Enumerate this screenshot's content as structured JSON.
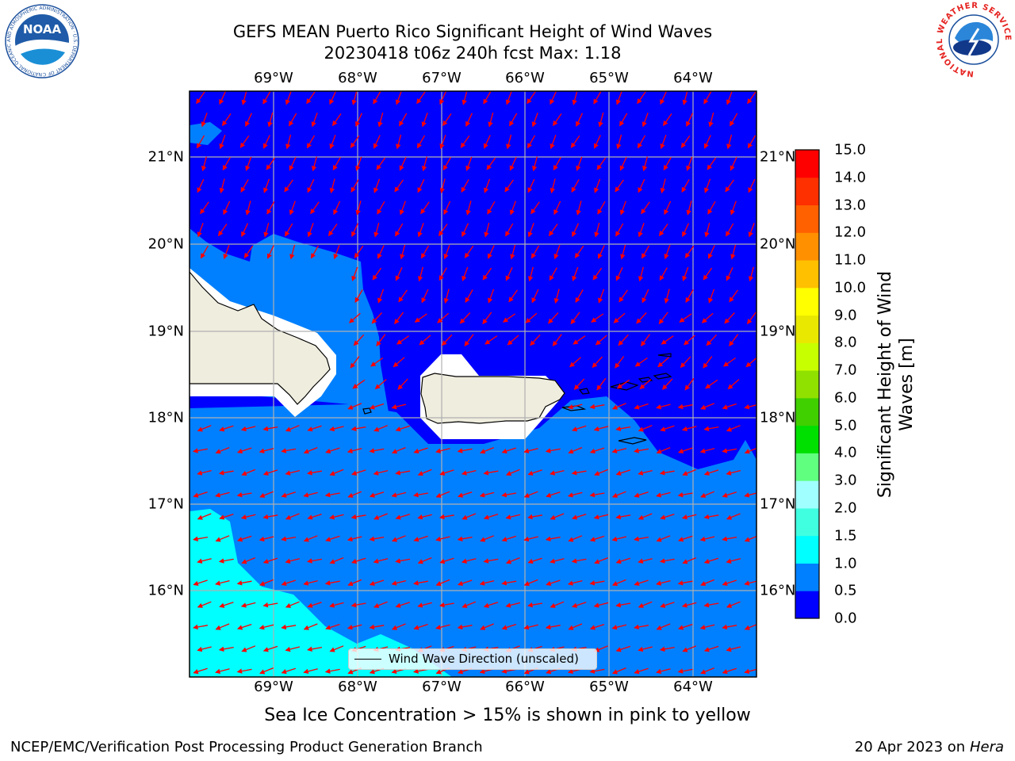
{
  "title": {
    "line1": "GEFS MEAN Puerto Rico Significant Height of Wind Waves",
    "line2": "20230418 t06z 240h fcst   Max: 1.18"
  },
  "logos": {
    "left": {
      "text": "NOAA",
      "ring_text": "NATIONAL OCEANIC AND ATMOSPHERIC ADMINISTRATION · U.S. DEPARTMENT OF COMMERCE",
      "color": "#1a4f9c"
    },
    "right": {
      "ring_text": "NATIONAL WEATHER SERVICE",
      "color": "#e52421"
    }
  },
  "map": {
    "lon_ticks": [
      "69°W",
      "68°W",
      "67°W",
      "66°W",
      "65°W",
      "64°W"
    ],
    "lat_ticks": [
      "21°N",
      "20°N",
      "19°N",
      "18°N",
      "17°N",
      "16°N"
    ],
    "lon_range": [
      -70,
      -63.25
    ],
    "lat_range": [
      15,
      21.75
    ],
    "land_color": "#efedde",
    "arrow_color": "#ff0000",
    "grid_color": "#b0b0b0"
  },
  "legend": {
    "label": "Wind Wave Direction (unscaled)"
  },
  "colorbar": {
    "title": "Significant Height of Wind Waves [m]",
    "labels": [
      "0.0",
      "0.5",
      "1.0",
      "1.5",
      "2.0",
      "3.0",
      "4.0",
      "5.0",
      "6.0",
      "7.0",
      "8.0",
      "9.0",
      "10.0",
      "11.0",
      "12.0",
      "13.0",
      "14.0",
      "15.0"
    ],
    "colors": [
      "#0000ff",
      "#0080ff",
      "#00ffff",
      "#40ffe0",
      "#a0ffff",
      "#60ff80",
      "#00e000",
      "#40d000",
      "#90e000",
      "#c8ff00",
      "#e8e800",
      "#ffff00",
      "#ffc000",
      "#ff9000",
      "#ff6000",
      "#ff3000",
      "#ff0000"
    ]
  },
  "note": "Sea Ice Concentration > 15% is shown in pink to yellow",
  "footer": {
    "left": "NCEP/EMC/Verification Post Processing Product Generation Branch",
    "right_date": "20 Apr 2023 on ",
    "right_machine": "Hera"
  }
}
